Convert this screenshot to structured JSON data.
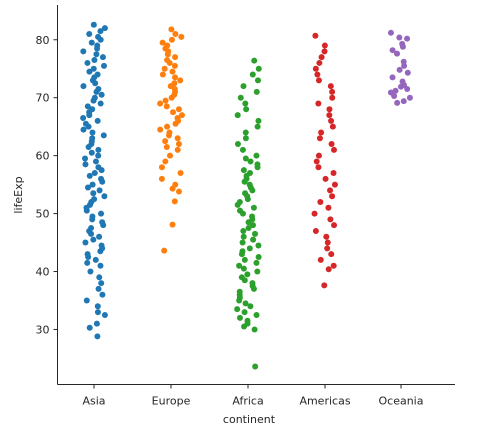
{
  "chart_data": {
    "type": "scatter",
    "subtype": "strip",
    "xlabel": "continent",
    "ylabel": "lifeExp",
    "categories": [
      "Asia",
      "Europe",
      "Africa",
      "Americas",
      "Oceania"
    ],
    "ylim": [
      20.5,
      86
    ],
    "yticks": [
      30,
      40,
      50,
      60,
      70,
      80
    ],
    "grid": false,
    "legend": "none",
    "series": [
      {
        "category": "Asia",
        "color": "#1f77b4",
        "values": [
          28.8,
          30.3,
          31.0,
          32.5,
          33.0,
          34.0,
          35.0,
          36.0,
          37.0,
          38.0,
          39.0,
          40.0,
          41.0,
          41.5,
          42.0,
          42.5,
          43.0,
          43.5,
          44.0,
          44.5,
          45.0,
          45.5,
          46.0,
          46.5,
          47.0,
          47.5,
          48.0,
          48.5,
          49.0,
          49.5,
          50.0,
          50.5,
          51.0,
          51.5,
          52.0,
          52.5,
          53.0,
          53.5,
          54.0,
          54.5,
          55.0,
          55.5,
          56.0,
          56.5,
          57.0,
          57.5,
          58.0,
          58.5,
          59.0,
          59.5,
          60.0,
          60.5,
          61.0,
          61.5,
          62.0,
          62.5,
          63.0,
          63.5,
          64.0,
          64.5,
          65.0,
          65.5,
          66.0,
          66.5,
          67.0,
          67.5,
          68.0,
          68.5,
          69.0,
          69.5,
          70.0,
          70.5,
          71.0,
          71.5,
          72.0,
          72.5,
          73.0,
          73.5,
          74.0,
          74.5,
          75.0,
          75.5,
          76.0,
          76.5,
          77.0,
          77.5,
          78.0,
          78.5,
          79.0,
          79.5,
          80.0,
          80.5,
          81.0,
          81.5,
          82.0,
          82.6
        ]
      },
      {
        "category": "Europe",
        "color": "#ff7f0e",
        "values": [
          43.6,
          48.1,
          52.1,
          53.8,
          54.3,
          55.0,
          56.0,
          57.0,
          58.0,
          59.0,
          60.0,
          61.0,
          61.5,
          62.0,
          62.5,
          63.0,
          63.5,
          64.0,
          64.5,
          65.0,
          65.5,
          66.0,
          66.5,
          67.0,
          67.5,
          68.0,
          68.5,
          69.0,
          69.5,
          70.0,
          70.5,
          71.0,
          71.5,
          72.0,
          72.5,
          73.0,
          73.5,
          74.0,
          74.5,
          75.0,
          75.5,
          76.0,
          76.5,
          77.0,
          77.5,
          78.0,
          78.5,
          79.0,
          79.5,
          80.0,
          80.5,
          81.0,
          81.8
        ]
      },
      {
        "category": "Africa",
        "color": "#2ca02c",
        "values": [
          23.6,
          30.0,
          30.5,
          31.0,
          31.5,
          32.0,
          32.5,
          33.0,
          33.5,
          34.0,
          34.5,
          35.0,
          35.5,
          36.0,
          36.5,
          37.0,
          37.5,
          38.0,
          38.5,
          39.0,
          39.5,
          40.0,
          40.5,
          41.0,
          41.5,
          42.0,
          42.5,
          43.0,
          43.5,
          44.0,
          44.5,
          45.0,
          45.5,
          46.0,
          46.5,
          47.0,
          47.5,
          48.0,
          48.5,
          49.0,
          49.5,
          50.0,
          50.5,
          51.0,
          51.5,
          52.0,
          52.5,
          53.0,
          53.5,
          54.0,
          54.5,
          55.0,
          55.5,
          56.0,
          56.5,
          57.0,
          57.5,
          58.0,
          58.5,
          59.0,
          59.5,
          60.0,
          61.0,
          62.0,
          63.0,
          64.0,
          65.0,
          66.0,
          67.0,
          68.0,
          69.0,
          70.0,
          71.0,
          72.0,
          73.0,
          74.0,
          75.0,
          76.4
        ]
      },
      {
        "category": "Americas",
        "color": "#d62728",
        "values": [
          37.6,
          40.4,
          41.0,
          42.0,
          43.0,
          44.0,
          45.0,
          46.0,
          47.0,
          48.0,
          49.0,
          50.0,
          51.0,
          52.0,
          53.0,
          54.0,
          55.0,
          56.0,
          57.0,
          58.0,
          59.0,
          60.0,
          61.0,
          62.0,
          63.0,
          64.0,
          65.0,
          66.0,
          67.0,
          68.0,
          69.0,
          70.0,
          71.0,
          72.0,
          73.0,
          74.0,
          75.0,
          76.0,
          77.0,
          78.0,
          79.0,
          80.7
        ]
      },
      {
        "category": "Oceania",
        "color": "#9467bd",
        "values": [
          69.1,
          69.4,
          70.0,
          70.3,
          70.9,
          71.2,
          71.5,
          71.9,
          72.2,
          72.8,
          73.5,
          74.3,
          74.8,
          75.5,
          76.2,
          77.6,
          78.2,
          78.8,
          79.3,
          80.2,
          80.4,
          81.2
        ]
      }
    ]
  }
}
